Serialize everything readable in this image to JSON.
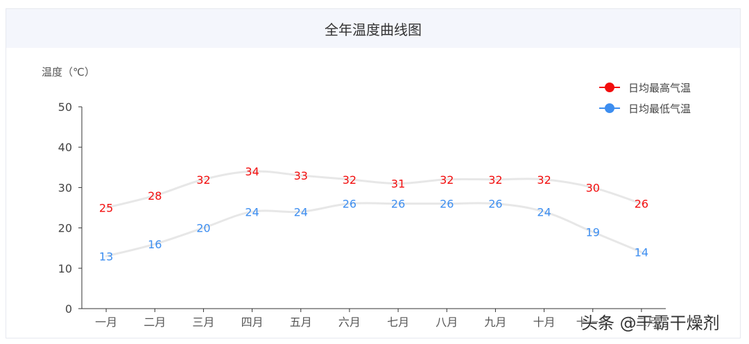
{
  "chart_data": {
    "type": "line",
    "title": "全年温度曲线图",
    "ylabel": "温度（℃）",
    "xlabel": "",
    "categories": [
      "一月",
      "二月",
      "三月",
      "四月",
      "五月",
      "六月",
      "七月",
      "八月",
      "九月",
      "十月",
      "十一月",
      "十二月"
    ],
    "ylim": [
      0,
      50
    ],
    "yticks": [
      0,
      10,
      20,
      30,
      40,
      50
    ],
    "series": [
      {
        "name": "日均最高气温",
        "color": "#f20d0d",
        "values": [
          25,
          28,
          32,
          34,
          33,
          32,
          31,
          32,
          32,
          32,
          30,
          26
        ]
      },
      {
        "name": "日均最低气温",
        "color": "#3d8ef0",
        "values": [
          13,
          16,
          20,
          24,
          24,
          26,
          26,
          26,
          26,
          24,
          19,
          14
        ]
      }
    ],
    "legend": "top-right",
    "grid": false
  },
  "watermark": "头条 @干霸干燥剂"
}
